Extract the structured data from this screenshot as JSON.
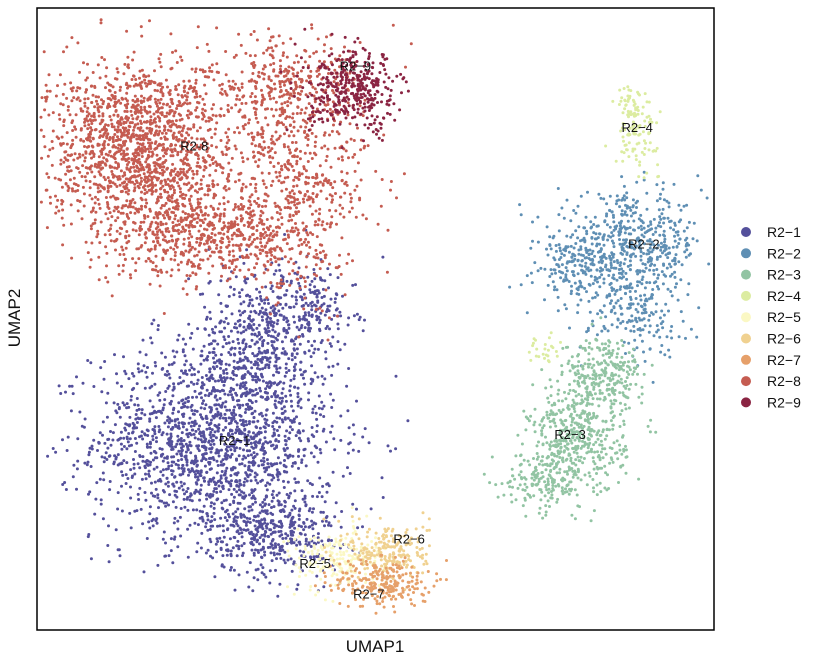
{
  "chart_data": {
    "type": "scatter",
    "title": "",
    "xlabel": "UMAP1",
    "ylabel": "UMAP2",
    "grid": false,
    "legend_placement": "right",
    "xlim": [
      0,
      100
    ],
    "ylim": [
      0,
      100
    ],
    "series": [
      {
        "name": "R2−1",
        "color": "#54509b",
        "label": "R2-1",
        "regions": [
          {
            "cx": 26,
            "cy": 30,
            "sx": 9,
            "sy": 8,
            "n": 1700
          },
          {
            "cx": 35,
            "cy": 15,
            "sx": 5,
            "sy": 3.5,
            "n": 380
          },
          {
            "cx": 33,
            "cy": 47,
            "sx": 5,
            "sy": 6,
            "n": 500
          },
          {
            "cx": 41,
            "cy": 52,
            "sx": 3,
            "sy": 3,
            "n": 120
          }
        ]
      },
      {
        "name": "R2−2",
        "color": "#5f8fb4",
        "label": "R2-2",
        "regions": [
          {
            "cx": 88,
            "cy": 62,
            "sx": 5.5,
            "sy": 4,
            "n": 520
          },
          {
            "cx": 80,
            "cy": 58,
            "sx": 3,
            "sy": 3,
            "n": 150
          },
          {
            "cx": 89,
            "cy": 51,
            "sx": 3.5,
            "sy": 3.5,
            "n": 160
          }
        ]
      },
      {
        "name": "R2−3",
        "color": "#92c4a3",
        "label": "R2-3",
        "regions": [
          {
            "cx": 80,
            "cy": 30,
            "sx": 3.6,
            "sy": 4.5,
            "n": 460
          },
          {
            "cx": 84,
            "cy": 41,
            "sx": 3,
            "sy": 3,
            "n": 260
          },
          {
            "cx": 75,
            "cy": 24,
            "sx": 3,
            "sy": 2.2,
            "n": 140
          }
        ]
      },
      {
        "name": "R2−4",
        "color": "#dceca1",
        "label": "R2-4",
        "regions": [
          {
            "cx": 89,
            "cy": 80,
            "sx": 1.6,
            "sy": 2.5,
            "n": 90
          },
          {
            "cx": 88,
            "cy": 85,
            "sx": 1,
            "sy": 1.5,
            "n": 40
          },
          {
            "cx": 75,
            "cy": 45,
            "sx": 1.2,
            "sy": 1.2,
            "n": 25
          }
        ]
      },
      {
        "name": "R2−5",
        "color": "#fbf8c4",
        "label": "R2-5",
        "regions": [
          {
            "cx": 44,
            "cy": 11,
            "sx": 3.5,
            "sy": 2.5,
            "n": 180
          }
        ]
      },
      {
        "name": "R2−6",
        "color": "#f0d190",
        "label": "R2-6",
        "regions": [
          {
            "cx": 52,
            "cy": 12,
            "sx": 3,
            "sy": 2.5,
            "n": 220
          }
        ]
      },
      {
        "name": "R2−7",
        "color": "#e6a06a",
        "label": "R2-7",
        "regions": [
          {
            "cx": 51,
            "cy": 7,
            "sx": 3.5,
            "sy": 2,
            "n": 240
          }
        ]
      },
      {
        "name": "R2−8",
        "color": "#c55c51",
        "label": "R2-8",
        "regions": [
          {
            "cx": 15,
            "cy": 78,
            "sx": 7,
            "sy": 7,
            "n": 1600
          },
          {
            "cx": 26,
            "cy": 64,
            "sx": 8,
            "sy": 4,
            "n": 650
          },
          {
            "cx": 39,
            "cy": 73,
            "sx": 5,
            "sy": 9,
            "n": 500
          },
          {
            "cx": 36,
            "cy": 88,
            "sx": 6,
            "sy": 4,
            "n": 300
          }
        ]
      },
      {
        "name": "R2−9",
        "color": "#8a2442",
        "label": "R2-9",
        "regions": [
          {
            "cx": 47,
            "cy": 87,
            "sx": 3.5,
            "sy": 3.2,
            "n": 380
          }
        ]
      }
    ],
    "cluster_labels": [
      {
        "text": "R2−1",
        "x": 29,
        "y": 30
      },
      {
        "text": "R2−2",
        "x": 90,
        "y": 62
      },
      {
        "text": "R2−3",
        "x": 79,
        "y": 31
      },
      {
        "text": "R2−4",
        "x": 89,
        "y": 81
      },
      {
        "text": "R2−5",
        "x": 41,
        "y": 10
      },
      {
        "text": "R2−6",
        "x": 55,
        "y": 14
      },
      {
        "text": "R2−7",
        "x": 49,
        "y": 5
      },
      {
        "text": "R2-8",
        "x": 23,
        "y": 78
      },
      {
        "text": "R2−9",
        "x": 47,
        "y": 91
      }
    ]
  }
}
